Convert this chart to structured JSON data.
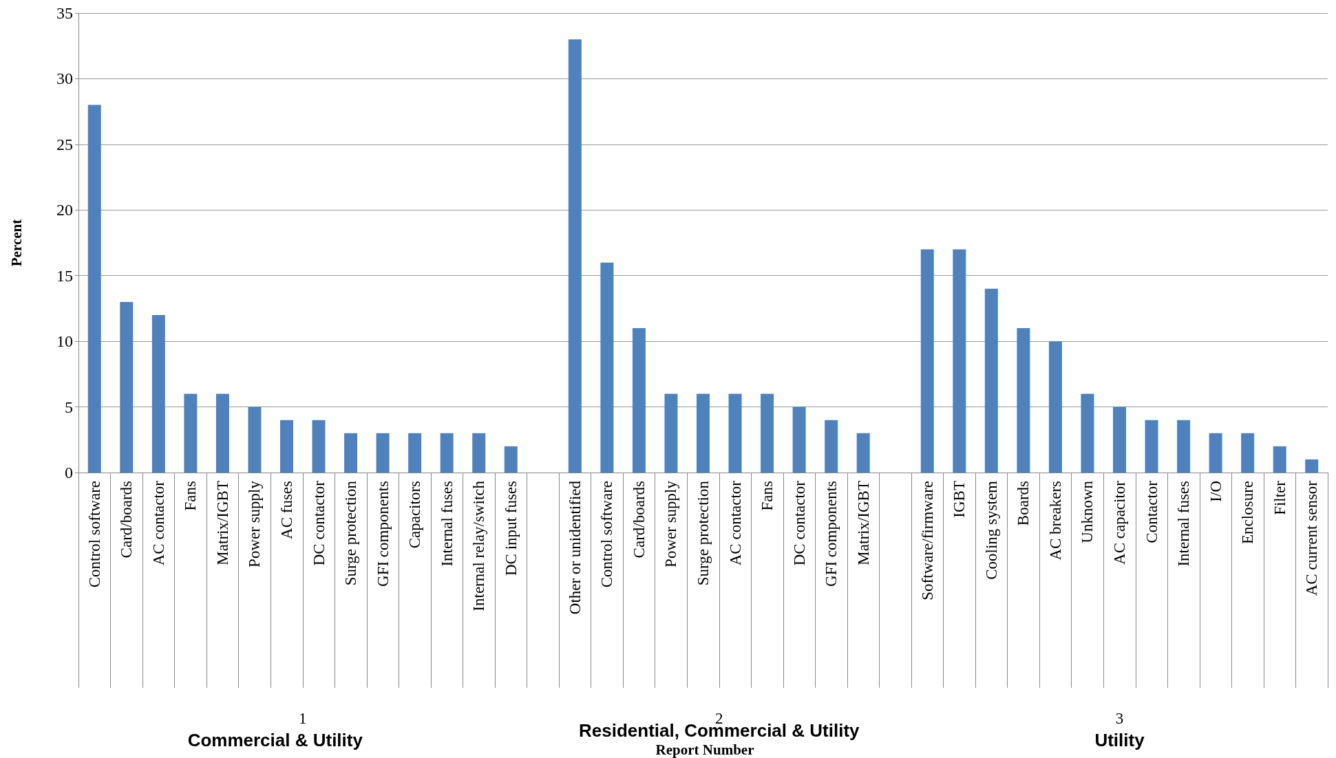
{
  "chart_data": {
    "type": "bar",
    "ylabel": "Percent",
    "categories": [
      "Control software",
      "Card/boards",
      "AC contactor",
      "Fans",
      "Matrix/IGBT",
      "Power supply",
      "AC fuses",
      "DC contactor",
      "Surge protection",
      "GFI components",
      "Capacitors",
      "Internal fuses",
      "Internal relay/switch",
      "DC input fuses",
      null,
      "Other or unidentified",
      "Control software",
      "Card/boards",
      "Power supply",
      "Surge protection",
      "AC contactor",
      "Fans",
      "DC contactor",
      "GFI components",
      "Matrix/IGBT",
      null,
      "Software/firmware",
      "IGBT",
      "Cooling system",
      "Boards",
      "AC breakers",
      "Unknown",
      "AC capacitor",
      "Contactor",
      "Internal fuses",
      "I/O",
      "Enclosure",
      "Filter",
      "AC current sensor"
    ],
    "values": [
      28,
      13,
      12,
      6,
      6,
      5,
      4,
      4,
      3,
      3,
      3,
      3,
      3,
      2,
      null,
      33,
      16,
      11,
      6,
      6,
      6,
      6,
      5,
      4,
      3,
      null,
      17,
      17,
      14,
      11,
      10,
      6,
      5,
      4,
      4,
      3,
      3,
      2,
      1
    ],
    "color": "#4f81bd",
    "ylim": [
      0,
      35
    ],
    "yticks": [
      0,
      5,
      10,
      15,
      20,
      25,
      30,
      35
    ],
    "grid": "y",
    "annotations": [
      "1",
      "Commercial & Utility",
      "2",
      "Residential, Commercial & Utility",
      "3",
      "Utility",
      "Report Number"
    ]
  }
}
